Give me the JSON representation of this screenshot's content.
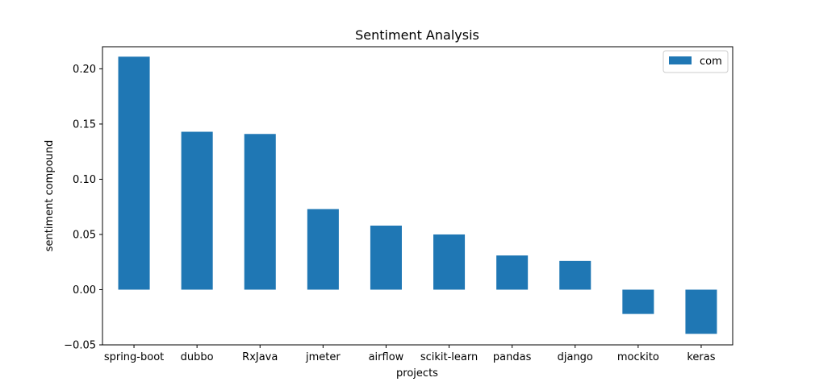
{
  "chart_data": {
    "type": "bar",
    "title": "Sentiment Analysis",
    "xlabel": "projects",
    "ylabel": "sentiment compound",
    "categories": [
      "spring-boot",
      "dubbo",
      "RxJava",
      "jmeter",
      "airflow",
      "scikit-learn",
      "pandas",
      "django",
      "mockito",
      "keras"
    ],
    "series": [
      {
        "name": "com",
        "color": "#1f77b4",
        "values": [
          0.211,
          0.143,
          0.141,
          0.073,
          0.058,
          0.05,
          0.031,
          0.026,
          -0.022,
          -0.04
        ]
      }
    ],
    "ylim": [
      -0.05,
      0.22
    ],
    "yticks": [
      -0.05,
      0.0,
      0.05,
      0.1,
      0.15,
      0.2
    ],
    "ytick_labels": [
      "−0.05",
      "0.00",
      "0.05",
      "0.10",
      "0.15",
      "0.20"
    ],
    "grid": false,
    "legend_position": "top-right"
  }
}
